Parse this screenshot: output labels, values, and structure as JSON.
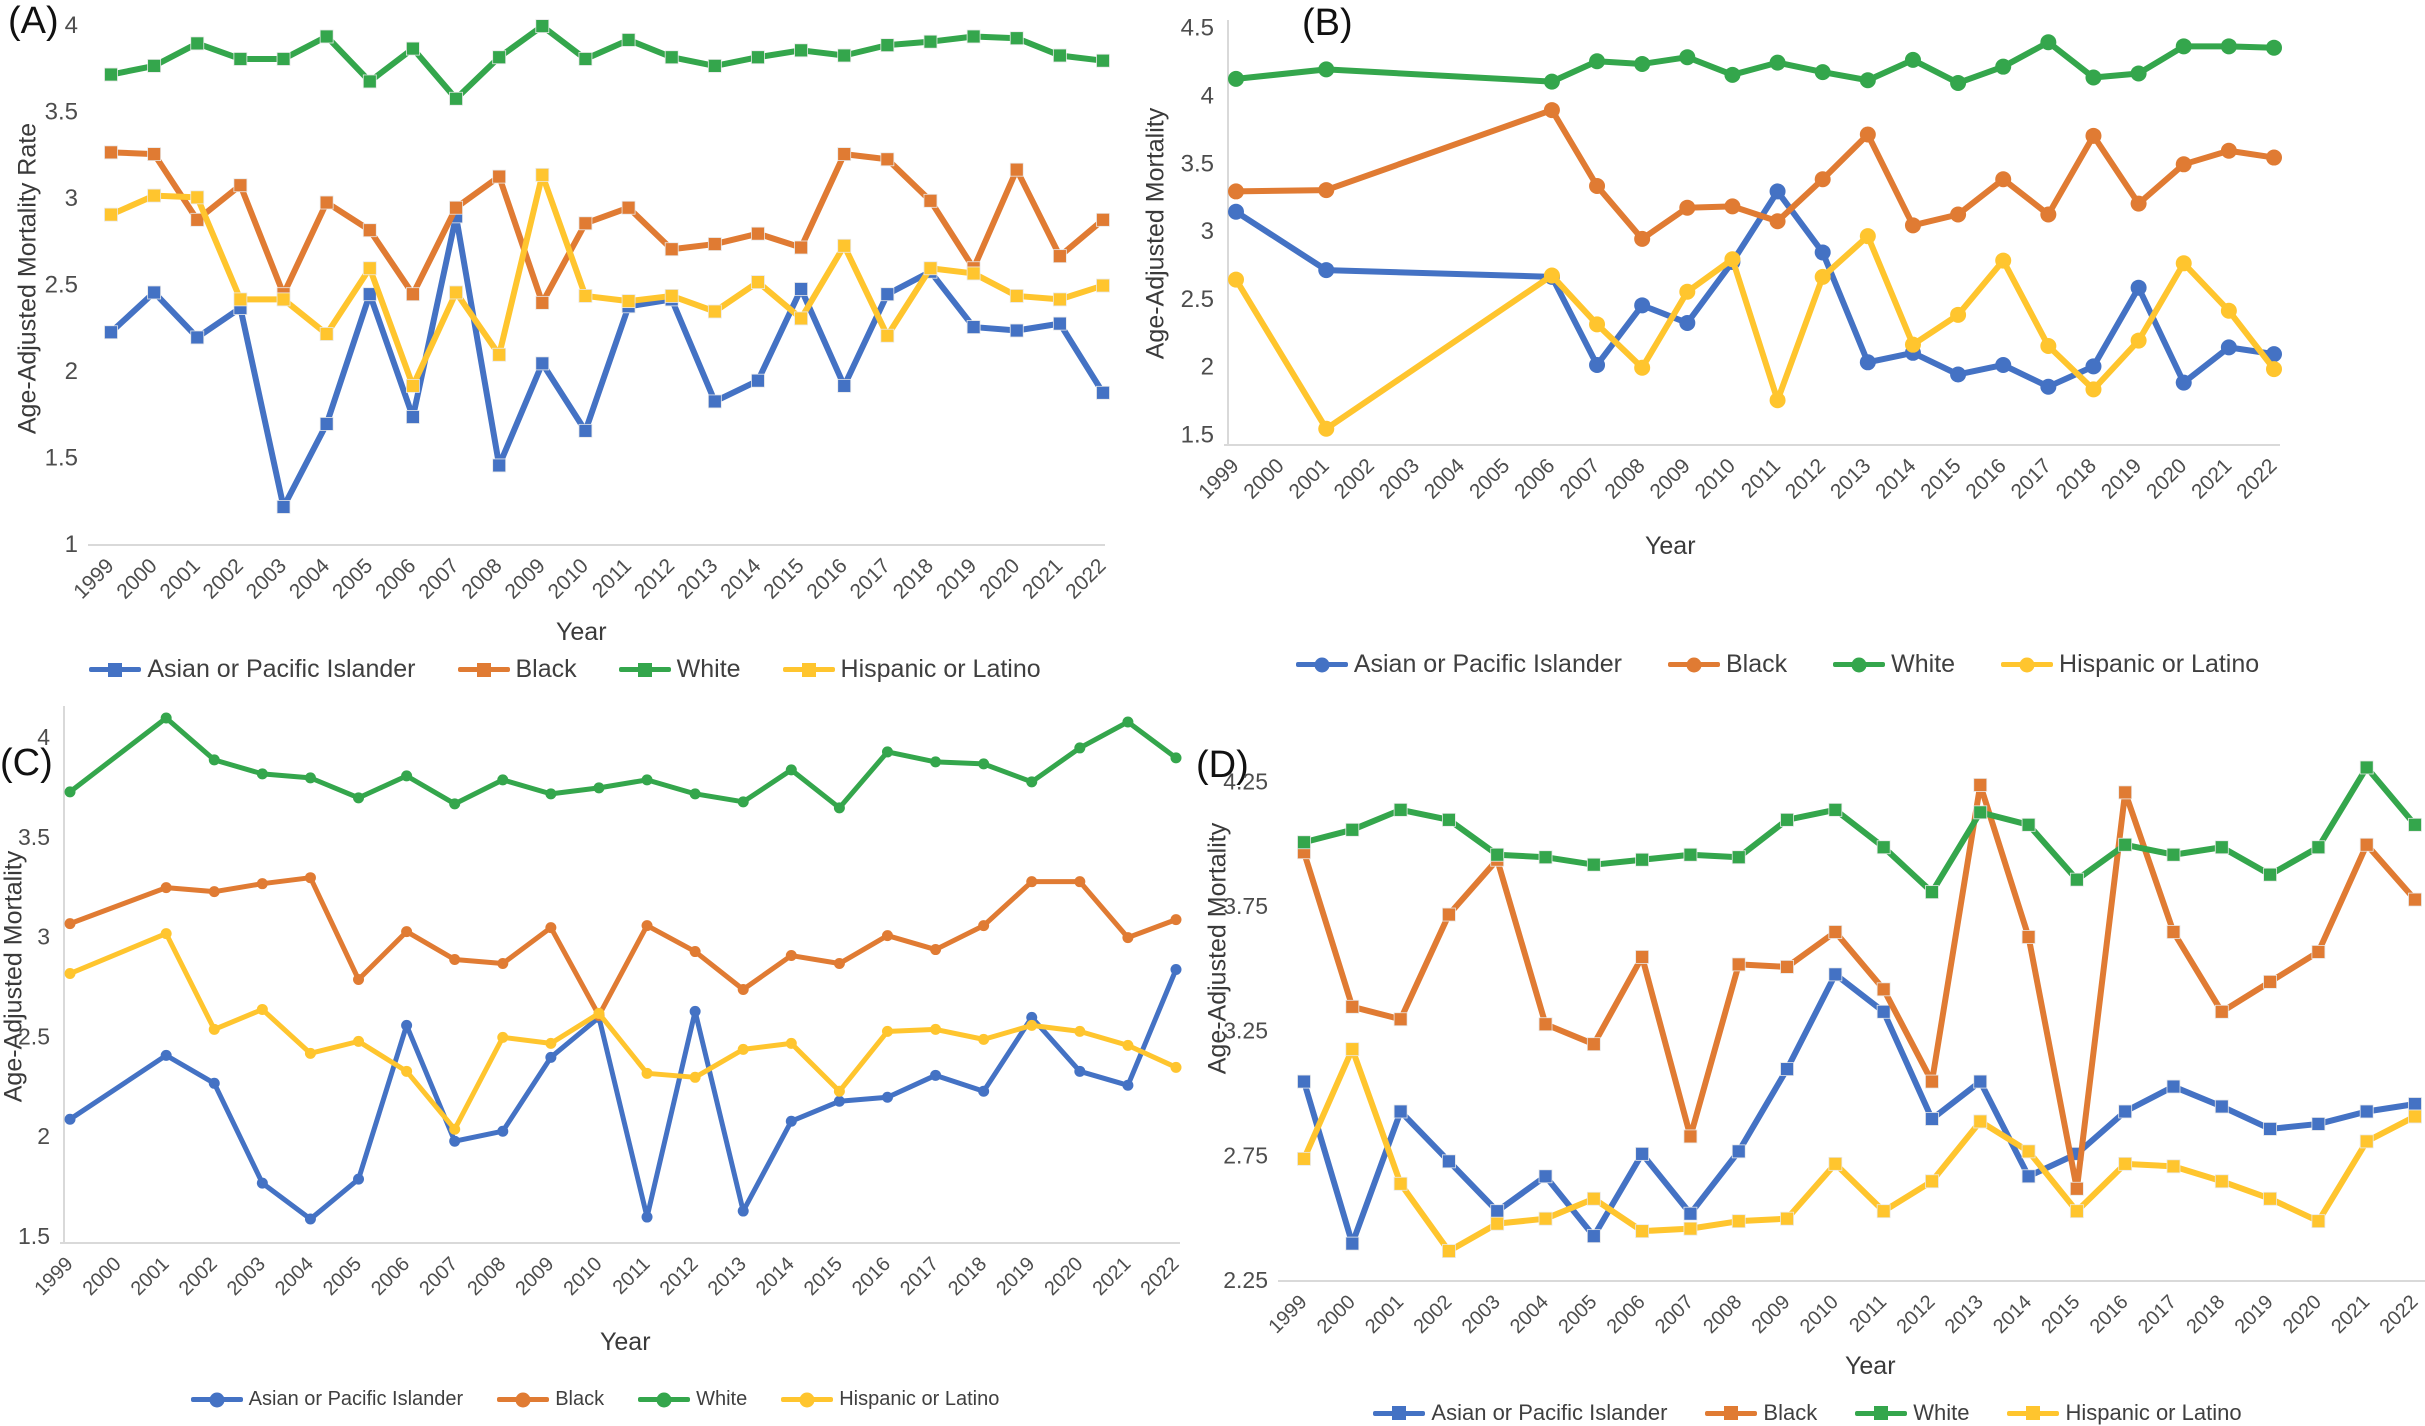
{
  "figure_title": "",
  "series_colors": {
    "asian_or_pacific_islander": "#4472C4",
    "black": "#E07B33",
    "white": "#34A64C",
    "hispanic_or_latino": "#FFC52E"
  },
  "legend_labels": [
    "Asian or Pacific Islander",
    "Black",
    "White",
    "Hispanic or Latino"
  ],
  "chart_data": [
    {
      "id": "A",
      "type": "line",
      "panel_label": "(A)",
      "ylabel": "Age-Adjusted Mortality Rate",
      "xlabel": "Year",
      "marker": "square",
      "ylim": [
        1.0,
        4.07
      ],
      "yticks": [
        1,
        1.5,
        2,
        2.5,
        3,
        3.5,
        4
      ],
      "x_axis_years": [
        1999,
        2000,
        2001,
        2002,
        2003,
        2004,
        2005,
        2006,
        2007,
        2008,
        2009,
        2010,
        2011,
        2012,
        2013,
        2014,
        2015,
        2016,
        2017,
        2018,
        2019,
        2020,
        2021,
        2022
      ],
      "years": [
        1999,
        2000,
        2001,
        2002,
        2003,
        2004,
        2005,
        2006,
        2007,
        2008,
        2009,
        2010,
        2011,
        2012,
        2013,
        2014,
        2015,
        2016,
        2017,
        2018,
        2019,
        2020,
        2021,
        2022
      ],
      "series": [
        {
          "name": "Asian or Pacific Islander",
          "key": "asian_or_pacific_islander",
          "values": [
            2.23,
            2.46,
            2.2,
            2.37,
            1.22,
            1.7,
            2.45,
            1.74,
            2.9,
            1.46,
            2.05,
            1.66,
            2.38,
            2.42,
            1.83,
            1.95,
            2.48,
            1.92,
            2.45,
            2.58,
            2.26,
            2.24,
            2.28,
            1.88
          ]
        },
        {
          "name": "Black",
          "key": "black",
          "values": [
            3.27,
            3.26,
            2.88,
            3.08,
            2.45,
            2.98,
            2.82,
            2.45,
            2.95,
            3.13,
            2.4,
            2.86,
            2.95,
            2.71,
            2.74,
            2.8,
            2.72,
            3.26,
            3.23,
            2.99,
            2.6,
            3.17,
            2.67,
            2.88
          ]
        },
        {
          "name": "White",
          "key": "white",
          "values": [
            3.72,
            3.77,
            3.9,
            3.81,
            3.81,
            3.94,
            3.68,
            3.87,
            3.58,
            3.82,
            4.0,
            3.81,
            3.92,
            3.82,
            3.77,
            3.82,
            3.86,
            3.83,
            3.89,
            3.91,
            3.94,
            3.93,
            3.83,
            3.8
          ]
        },
        {
          "name": "Hispanic or Latino",
          "key": "hispanic_or_latino",
          "values": [
            2.91,
            3.02,
            3.01,
            2.42,
            2.42,
            2.22,
            2.6,
            1.92,
            2.46,
            2.1,
            3.14,
            2.44,
            2.41,
            2.44,
            2.35,
            2.52,
            2.31,
            2.73,
            2.21,
            2.6,
            2.57,
            2.44,
            2.42,
            2.5
          ]
        }
      ]
    },
    {
      "id": "B",
      "type": "line",
      "panel_label": "(B)",
      "ylabel": "Age-Adjusted Mortality",
      "xlabel": "Year",
      "marker": "circle",
      "ylim": [
        1.43,
        4.52
      ],
      "yticks": [
        1.5,
        2,
        2.5,
        3,
        3.5,
        4,
        4.5
      ],
      "x_axis_years": [
        1999,
        2000,
        2001,
        2002,
        2003,
        2004,
        2005,
        2006,
        2007,
        2008,
        2009,
        2010,
        2011,
        2012,
        2013,
        2014,
        2015,
        2016,
        2017,
        2018,
        2019,
        2020,
        2021,
        2022
      ],
      "years": [
        1999,
        2001,
        2006,
        2007,
        2008,
        2009,
        2010,
        2011,
        2012,
        2013,
        2014,
        2015,
        2016,
        2017,
        2018,
        2019,
        2020,
        2021,
        2022
      ],
      "series": [
        {
          "name": "Asian or Pacific Islander",
          "key": "asian_or_pacific_islander",
          "values": [
            3.15,
            2.72,
            2.67,
            2.02,
            2.46,
            2.33,
            2.78,
            3.3,
            2.85,
            2.04,
            2.11,
            1.95,
            2.02,
            1.86,
            2.01,
            2.59,
            1.89,
            2.15,
            2.1
          ]
        },
        {
          "name": "Black",
          "key": "black",
          "values": [
            3.3,
            3.31,
            3.9,
            3.34,
            2.95,
            3.18,
            3.19,
            3.08,
            3.39,
            3.72,
            3.05,
            3.13,
            3.39,
            3.13,
            3.71,
            3.21,
            3.5,
            3.6,
            3.55
          ]
        },
        {
          "name": "White",
          "key": "white",
          "values": [
            4.13,
            4.2,
            4.11,
            4.26,
            4.24,
            4.29,
            4.16,
            4.25,
            4.18,
            4.12,
            4.27,
            4.1,
            4.22,
            4.4,
            4.14,
            4.17,
            4.37,
            4.37,
            4.36
          ]
        },
        {
          "name": "Hispanic or Latino",
          "key": "hispanic_or_latino",
          "values": [
            2.65,
            1.55,
            2.68,
            2.32,
            2.0,
            2.56,
            2.8,
            1.76,
            2.67,
            2.97,
            2.17,
            2.39,
            2.79,
            2.16,
            1.84,
            2.2,
            2.77,
            2.42,
            1.99
          ]
        }
      ]
    },
    {
      "id": "C",
      "type": "line",
      "panel_label": "(C)",
      "ylabel": "Age-Adjusted Mortality",
      "xlabel": "Year",
      "marker": "circle",
      "ylim": [
        1.47,
        4.13
      ],
      "yticks": [
        1.5,
        2,
        2.5,
        3,
        3.5,
        4
      ],
      "x_axis_years": [
        1999,
        2000,
        2001,
        2002,
        2003,
        2004,
        2005,
        2006,
        2007,
        2008,
        2009,
        2010,
        2011,
        2012,
        2013,
        2014,
        2015,
        2016,
        2017,
        2018,
        2019,
        2020,
        2021,
        2022
      ],
      "years": [
        1999,
        2001,
        2002,
        2003,
        2004,
        2005,
        2006,
        2007,
        2008,
        2009,
        2010,
        2011,
        2012,
        2013,
        2014,
        2015,
        2016,
        2017,
        2018,
        2019,
        2020,
        2021,
        2022
      ],
      "series": [
        {
          "name": "Asian or Pacific Islander",
          "key": "asian_or_pacific_islander",
          "values": [
            2.09,
            2.41,
            2.27,
            1.77,
            1.59,
            1.79,
            2.56,
            1.98,
            2.03,
            2.4,
            2.6,
            1.6,
            2.63,
            1.63,
            2.08,
            2.18,
            2.2,
            2.31,
            2.23,
            2.6,
            2.33,
            2.26,
            2.84
          ]
        },
        {
          "name": "Black",
          "key": "black",
          "values": [
            3.07,
            3.25,
            3.23,
            3.27,
            3.3,
            2.79,
            3.03,
            2.89,
            2.87,
            3.05,
            2.61,
            3.06,
            2.93,
            2.74,
            2.91,
            2.87,
            3.01,
            2.94,
            3.06,
            3.28,
            3.28,
            3.0,
            3.09
          ]
        },
        {
          "name": "White",
          "key": "white",
          "values": [
            3.73,
            4.1,
            3.89,
            3.82,
            3.8,
            3.7,
            3.81,
            3.67,
            3.79,
            3.72,
            3.75,
            3.79,
            3.72,
            3.68,
            3.84,
            3.65,
            3.93,
            3.88,
            3.87,
            3.78,
            3.95,
            4.08,
            3.9
          ]
        },
        {
          "name": "Hispanic or Latino",
          "key": "hispanic_or_latino",
          "values": [
            2.82,
            3.02,
            2.54,
            2.64,
            2.42,
            2.48,
            2.33,
            2.04,
            2.5,
            2.47,
            2.62,
            2.32,
            2.3,
            2.44,
            2.47,
            2.23,
            2.53,
            2.54,
            2.49,
            2.56,
            2.53,
            2.46,
            2.35
          ]
        }
      ]
    },
    {
      "id": "D",
      "type": "line",
      "panel_label": "(D)",
      "ylabel": "Age-Adjusted Mortality",
      "xlabel": "Year",
      "marker": "square",
      "ylim": [
        2.25,
        4.34
      ],
      "yticks": [
        2.25,
        2.75,
        3.25,
        3.75,
        4.25
      ],
      "x_axis_years": [
        1999,
        2000,
        2001,
        2002,
        2003,
        2004,
        2005,
        2006,
        2007,
        2008,
        2009,
        2010,
        2011,
        2012,
        2013,
        2014,
        2015,
        2016,
        2017,
        2018,
        2019,
        2020,
        2021,
        2022
      ],
      "years": [
        1999,
        2000,
        2001,
        2002,
        2003,
        2004,
        2005,
        2006,
        2007,
        2008,
        2009,
        2010,
        2011,
        2012,
        2013,
        2014,
        2015,
        2016,
        2017,
        2018,
        2019,
        2020,
        2021,
        2022
      ],
      "series": [
        {
          "name": "Asian or Pacific Islander",
          "key": "asian_or_pacific_islander",
          "values": [
            3.05,
            2.4,
            2.93,
            2.73,
            2.53,
            2.67,
            2.43,
            2.76,
            2.52,
            2.77,
            3.1,
            3.48,
            3.33,
            2.9,
            3.05,
            2.67,
            2.76,
            2.93,
            3.03,
            2.95,
            2.86,
            2.88,
            2.93,
            2.96
          ]
        },
        {
          "name": "Black",
          "key": "black",
          "values": [
            3.97,
            3.35,
            3.3,
            3.72,
            3.94,
            3.28,
            3.2,
            3.55,
            2.83,
            3.52,
            3.51,
            3.65,
            3.42,
            3.05,
            4.24,
            3.63,
            2.62,
            4.21,
            3.65,
            3.33,
            3.45,
            3.57,
            4.0,
            3.78
          ]
        },
        {
          "name": "White",
          "key": "white",
          "values": [
            4.01,
            4.06,
            4.14,
            4.1,
            3.96,
            3.95,
            3.92,
            3.94,
            3.96,
            3.95,
            4.1,
            4.14,
            3.99,
            3.81,
            4.13,
            4.08,
            3.86,
            4.0,
            3.96,
            3.99,
            3.88,
            3.99,
            4.31,
            4.08
          ]
        },
        {
          "name": "Hispanic or Latino",
          "key": "hispanic_or_latino",
          "values": [
            2.74,
            3.18,
            2.64,
            2.37,
            2.48,
            2.5,
            2.58,
            2.45,
            2.46,
            2.49,
            2.5,
            2.72,
            2.53,
            2.65,
            2.89,
            2.77,
            2.53,
            2.72,
            2.71,
            2.65,
            2.58,
            2.49,
            2.81,
            2.91
          ]
        }
      ]
    }
  ]
}
